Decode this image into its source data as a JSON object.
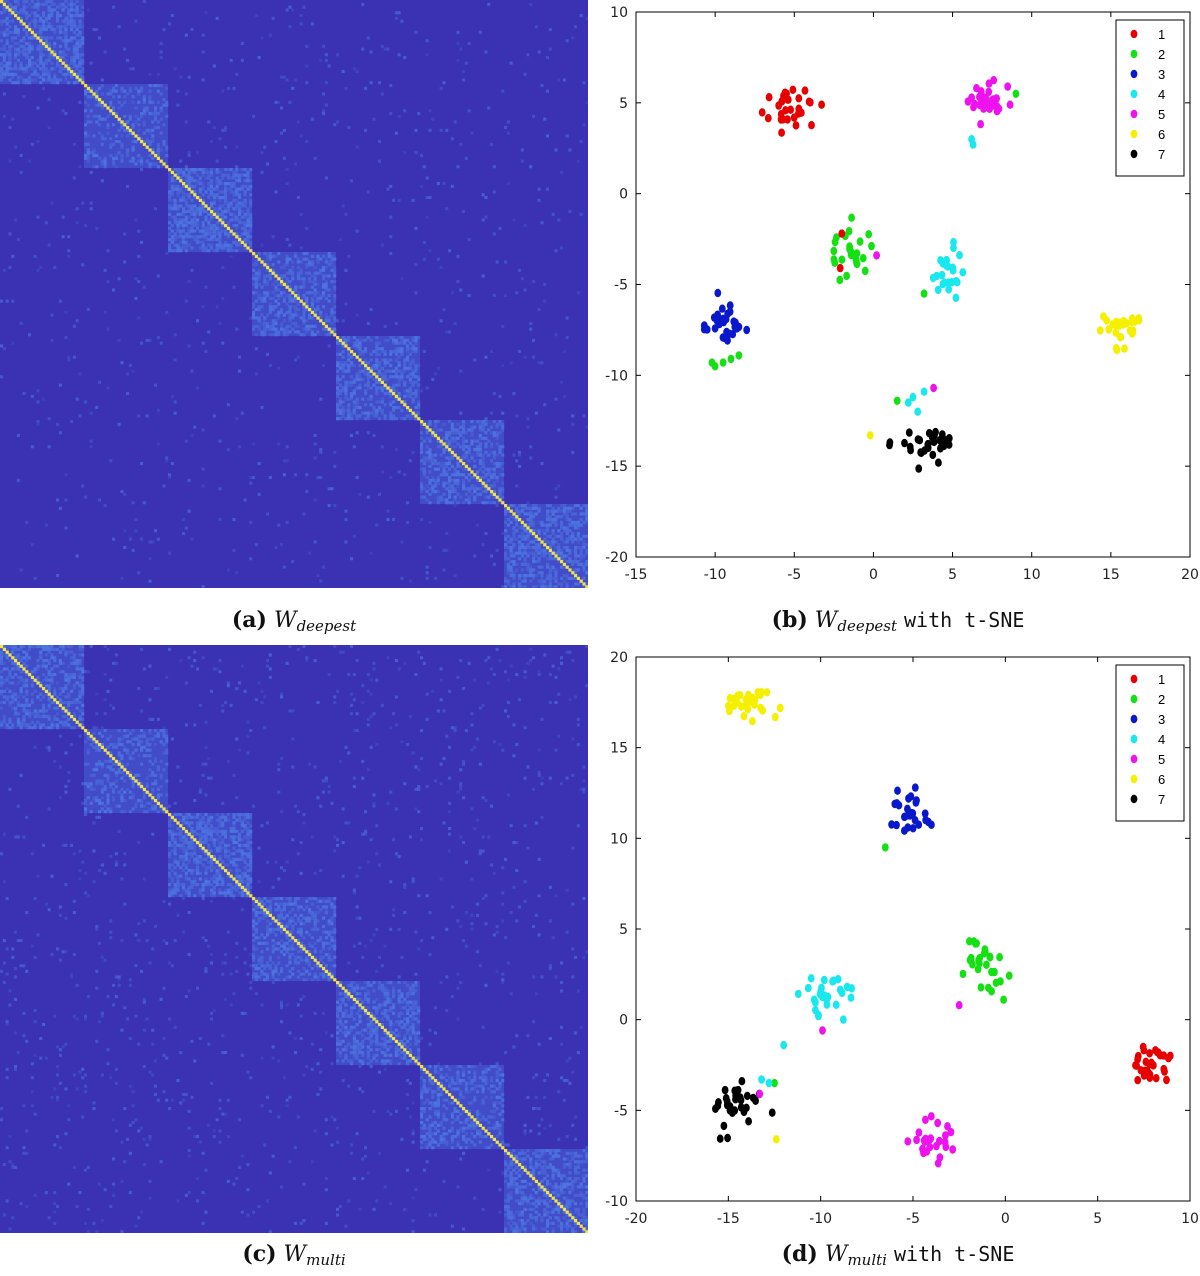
{
  "captions": {
    "a": {
      "label": "(a)",
      "symbol": "W",
      "sub": "deepest",
      "rest": ""
    },
    "b": {
      "label": "(b)",
      "symbol": "W",
      "sub": "deepest",
      "rest": "with t-SNE"
    },
    "c": {
      "label": "(c)",
      "symbol": "W",
      "sub": "multi",
      "rest": ""
    },
    "d": {
      "label": "(d)",
      "symbol": "W",
      "sub": "multi",
      "rest": "with t-SNE"
    }
  },
  "colors": {
    "heat_background": "#3a31b3",
    "heat_block": "#4a62d8",
    "heat_speck": "#4f7fe6",
    "heat_diagonal": "#f2e24a",
    "cluster": {
      "1": "#e60000",
      "2": "#14e014",
      "3": "#0a18cc",
      "4": "#19e8ee",
      "5": "#ee12ee",
      "6": "#f5ef00",
      "7": "#000000"
    }
  },
  "legend": [
    "1",
    "2",
    "3",
    "4",
    "5",
    "6",
    "7"
  ],
  "chart_data": [
    {
      "id": "a",
      "type": "heatmap",
      "title": "",
      "n": 210,
      "blocks": [
        [
          0,
          30
        ],
        [
          30,
          60
        ],
        [
          60,
          90
        ],
        [
          90,
          120
        ],
        [
          120,
          150
        ],
        [
          150,
          180
        ],
        [
          180,
          210
        ]
      ],
      "block_density": [
        0.55,
        0.3,
        0.6,
        0.45,
        0.5,
        0.45,
        0.5
      ],
      "offblock_density": 0.02,
      "diagonal": "bright"
    },
    {
      "id": "b",
      "type": "scatter",
      "title": "",
      "xlim": [
        -15,
        20
      ],
      "ylim": [
        -20,
        10
      ],
      "xticks": [
        -15,
        -10,
        -5,
        0,
        5,
        10,
        15,
        20
      ],
      "yticks": [
        10,
        5,
        0,
        -5,
        -10,
        -15,
        -20
      ],
      "legend_position": "top-right",
      "clusters": [
        {
          "label": "1",
          "center": [
            -5,
            4.6
          ],
          "spread": [
            1.0,
            0.65
          ],
          "n": 30
        },
        {
          "label": "2",
          "center": [
            -1.6,
            -3.2
          ],
          "spread": [
            0.95,
            1.0
          ],
          "n": 24
        },
        {
          "label": "3",
          "center": [
            -9.8,
            -7.2
          ],
          "spread": [
            0.95,
            0.75
          ],
          "n": 30
        },
        {
          "label": "4",
          "center": [
            4.8,
            -4.3
          ],
          "spread": [
            0.65,
            0.85
          ],
          "n": 25
        },
        {
          "label": "5",
          "center": [
            7.0,
            5.0
          ],
          "spread": [
            0.9,
            0.8
          ],
          "n": 28
        },
        {
          "label": "6",
          "center": [
            15.8,
            -7.3
          ],
          "spread": [
            0.95,
            0.65
          ],
          "n": 28
        },
        {
          "label": "7",
          "center": [
            3.3,
            -13.8
          ],
          "spread": [
            1.2,
            0.6
          ],
          "n": 30
        }
      ],
      "outliers": [
        {
          "label": "1",
          "points": [
            [
              -2.1,
              -4.1
            ],
            [
              -2.0,
              -2.2
            ]
          ]
        },
        {
          "label": "2",
          "points": [
            [
              9.0,
              5.5
            ],
            [
              -10.2,
              -9.3
            ],
            [
              -10.0,
              -9.5
            ],
            [
              -9.0,
              -9.1
            ],
            [
              -8.5,
              -8.9
            ],
            [
              -9.5,
              -9.3
            ],
            [
              3.2,
              -5.5
            ],
            [
              1.5,
              -11.4
            ]
          ]
        },
        {
          "label": "4",
          "points": [
            [
              6.3,
              2.7
            ],
            [
              6.2,
              3.0
            ],
            [
              2.5,
              -11.2
            ],
            [
              2.8,
              -12.0
            ],
            [
              3.2,
              -10.9
            ],
            [
              2.2,
              -11.5
            ]
          ]
        },
        {
          "label": "5",
          "points": [
            [
              0.2,
              -3.4
            ],
            [
              3.8,
              -10.7
            ]
          ]
        },
        {
          "label": "6",
          "points": [
            [
              -0.2,
              -13.3
            ]
          ]
        }
      ]
    },
    {
      "id": "c",
      "type": "heatmap",
      "title": "",
      "n": 210,
      "blocks": [
        [
          0,
          30
        ],
        [
          30,
          60
        ],
        [
          60,
          90
        ],
        [
          90,
          120
        ],
        [
          120,
          150
        ],
        [
          150,
          180
        ],
        [
          180,
          210
        ]
      ],
      "block_density": [
        0.45,
        0.3,
        0.55,
        0.45,
        0.45,
        0.4,
        0.45
      ],
      "offblock_density": 0.03,
      "diagonal": "bright"
    },
    {
      "id": "d",
      "type": "scatter",
      "title": "",
      "xlim": [
        -20,
        10
      ],
      "ylim": [
        -10,
        20
      ],
      "xticks": [
        -20,
        -15,
        -10,
        -5,
        0,
        5,
        10
      ],
      "yticks": [
        20,
        15,
        10,
        5,
        0,
        -5,
        -10
      ],
      "legend_position": "top-right",
      "clusters": [
        {
          "label": "1",
          "center": [
            7.8,
            -2.4
          ],
          "spread": [
            0.8,
            0.85
          ],
          "n": 30
        },
        {
          "label": "2",
          "center": [
            -1.2,
            2.8
          ],
          "spread": [
            0.95,
            1.1
          ],
          "n": 28
        },
        {
          "label": "3",
          "center": [
            -5.2,
            11.5
          ],
          "spread": [
            0.8,
            0.8
          ],
          "n": 28
        },
        {
          "label": "4",
          "center": [
            -9.6,
            1.2
          ],
          "spread": [
            0.85,
            1.0
          ],
          "n": 28
        },
        {
          "label": "5",
          "center": [
            -4.0,
            -6.7
          ],
          "spread": [
            0.85,
            0.85
          ],
          "n": 26
        },
        {
          "label": "6",
          "center": [
            -13.9,
            17.5
          ],
          "spread": [
            0.95,
            0.6
          ],
          "n": 30
        },
        {
          "label": "7",
          "center": [
            -14.4,
            -4.8
          ],
          "spread": [
            1.0,
            0.95
          ],
          "n": 32
        }
      ],
      "outliers": [
        {
          "label": "2",
          "points": [
            [
              -6.5,
              9.5
            ],
            [
              -12.5,
              -3.5
            ]
          ]
        },
        {
          "label": "4",
          "points": [
            [
              -12.0,
              -1.4
            ],
            [
              -13.2,
              -3.3
            ],
            [
              -12.8,
              -3.5
            ]
          ]
        },
        {
          "label": "5",
          "points": [
            [
              -9.9,
              -0.6
            ],
            [
              -2.5,
              0.8
            ],
            [
              -13.3,
              -4.1
            ]
          ]
        },
        {
          "label": "6",
          "points": [
            [
              -12.4,
              -6.6
            ]
          ]
        }
      ]
    }
  ]
}
